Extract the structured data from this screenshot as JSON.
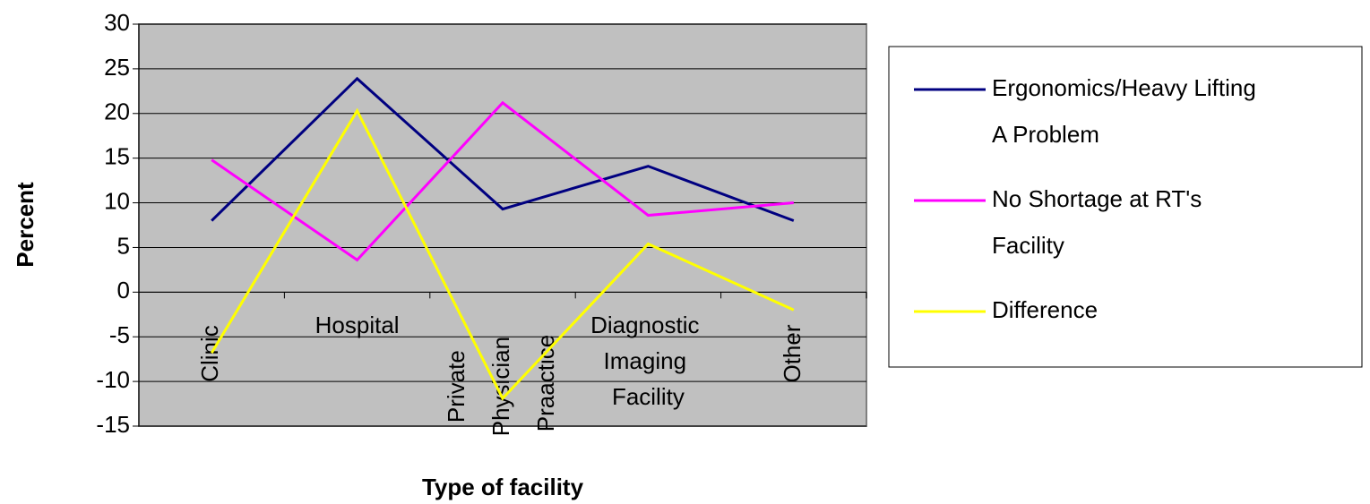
{
  "chart_data": {
    "type": "line",
    "y_label": "Percent",
    "x_label": "Type of facility",
    "categories": [
      "Clinic",
      "Hospital",
      "Private Physician Praactice",
      "Diagnostic Imaging Facility",
      "Other"
    ],
    "series": [
      {
        "name": "Ergonomics/Heavy Lifting A Problem",
        "color": "#000080",
        "values": [
          8,
          23.9,
          9.3,
          14.1,
          8
        ]
      },
      {
        "name": "No Shortage at RT's Facility",
        "color": "#ff00ff",
        "values": [
          14.8,
          3.6,
          21.2,
          8.6,
          10
        ]
      },
      {
        "name": "Difference",
        "color": "#ffff00",
        "values": [
          -6.8,
          20.3,
          -11.9,
          5.4,
          -2
        ]
      }
    ],
    "ylim": [
      -15,
      30
    ],
    "yticks": [
      -15,
      -10,
      -5,
      0,
      5,
      10,
      15,
      20,
      25,
      30
    ],
    "grid": true,
    "legend": "right"
  }
}
